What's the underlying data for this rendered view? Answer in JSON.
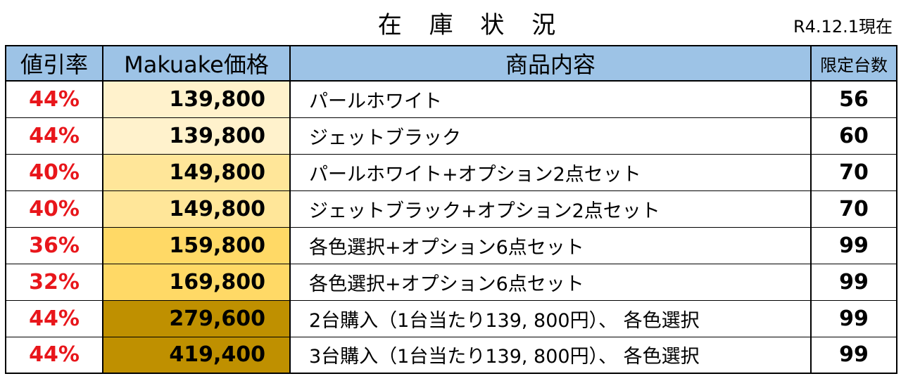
{
  "title": "在 庫 状 況",
  "date": "R4.12.1現在",
  "headers": [
    "値引率",
    "Makuake価格",
    "商品内容",
    "限定台数"
  ],
  "rows": [
    {
      "discount": "44%",
      "price": "139,800",
      "content": "パールホワイト",
      "qty": "56",
      "price_bg": "#fff2cc"
    },
    {
      "discount": "44%",
      "price": "139,800",
      "content": "ジェットブラック",
      "qty": "60",
      "price_bg": "#fff2cc"
    },
    {
      "discount": "40%",
      "price": "149,800",
      "content": "パールホワイト+オプション2点セット",
      "qty": "70",
      "price_bg": "#ffe699"
    },
    {
      "discount": "40%",
      "price": "149,800",
      "content": "ジェットブラック+オプション2点セット",
      "qty": "70",
      "price_bg": "#ffe699"
    },
    {
      "discount": "36%",
      "price": "159,800",
      "content": "各色選択+オプション6点セット",
      "qty": "99",
      "price_bg": "#ffd966"
    },
    {
      "discount": "32%",
      "price": "169,800",
      "content": "各色選択+オプション6点セット",
      "qty": "99",
      "price_bg": "#ffd966"
    },
    {
      "discount": "44%",
      "price": "279,600",
      "content": "2台購入（1台当たり139, 800円）、 各色選択",
      "qty": "99",
      "price_bg": "#bf9000"
    },
    {
      "discount": "44%",
      "price": "419,400",
      "content": "3台購入（1台当たり139, 800円）、 各色選択",
      "qty": "99",
      "price_bg": "#bf9000"
    }
  ],
  "colors": {
    "header_bg": "#9dc3e6",
    "discount_text": "#e8161b"
  }
}
